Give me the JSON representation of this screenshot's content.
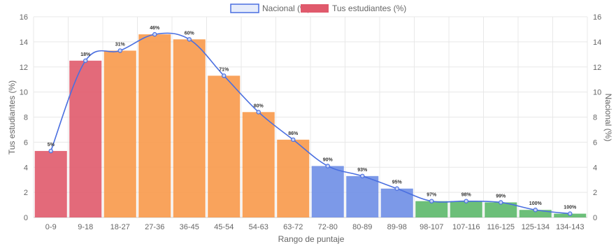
{
  "chart_data": {
    "type": "bar",
    "xlabel": "Rango de puntaje",
    "ylabel": "Tus estudiantes (%)",
    "y2label": "Nacional (%)",
    "ylim": [
      0,
      16
    ],
    "y2lim": [
      0,
      16
    ],
    "yticks": [
      0,
      2,
      4,
      6,
      8,
      10,
      12,
      14,
      16
    ],
    "grid": true,
    "legend_position": "top-center",
    "legend": [
      {
        "label": "Nacional (%)",
        "swatch": "line-series"
      },
      {
        "label": "Tus estudiantes (%)",
        "swatch": "bar-series"
      }
    ],
    "categories": [
      "0-9",
      "9-18",
      "18-27",
      "27-36",
      "36-45",
      "45-54",
      "54-63",
      "63-72",
      "72-80",
      "80-89",
      "89-98",
      "98-107",
      "107-116",
      "116-125",
      "125-134",
      "134-143"
    ],
    "series": [
      {
        "name": "Tus estudiantes (%)",
        "type": "bar",
        "values": [
          5.3,
          12.5,
          13.3,
          14.6,
          14.2,
          11.3,
          8.4,
          6.2,
          4.1,
          3.3,
          2.3,
          1.3,
          1.3,
          1.2,
          0.6,
          0.3
        ],
        "colors": [
          "#e05a6c",
          "#e05a6c",
          "#f8994a",
          "#f8994a",
          "#f8994a",
          "#f8994a",
          "#f8994a",
          "#f8994a",
          "#6e8ee6",
          "#6e8ee6",
          "#6e8ee6",
          "#5cb86a",
          "#5cb86a",
          "#5cb86a",
          "#5cb86a",
          "#5cb86a"
        ]
      },
      {
        "name": "Nacional (%)",
        "type": "line",
        "color": "#4a6fe0",
        "values": [
          5.3,
          12.5,
          13.3,
          14.6,
          14.2,
          11.3,
          8.4,
          6.2,
          4.1,
          3.3,
          2.3,
          1.3,
          1.3,
          1.2,
          0.6,
          0.3
        ]
      }
    ],
    "cumulative_labels": [
      "5%",
      "18%",
      "31%",
      "46%",
      "60%",
      "71%",
      "80%",
      "86%",
      "90%",
      "93%",
      "95%",
      "97%",
      "98%",
      "99%",
      "100%",
      "100%"
    ]
  }
}
